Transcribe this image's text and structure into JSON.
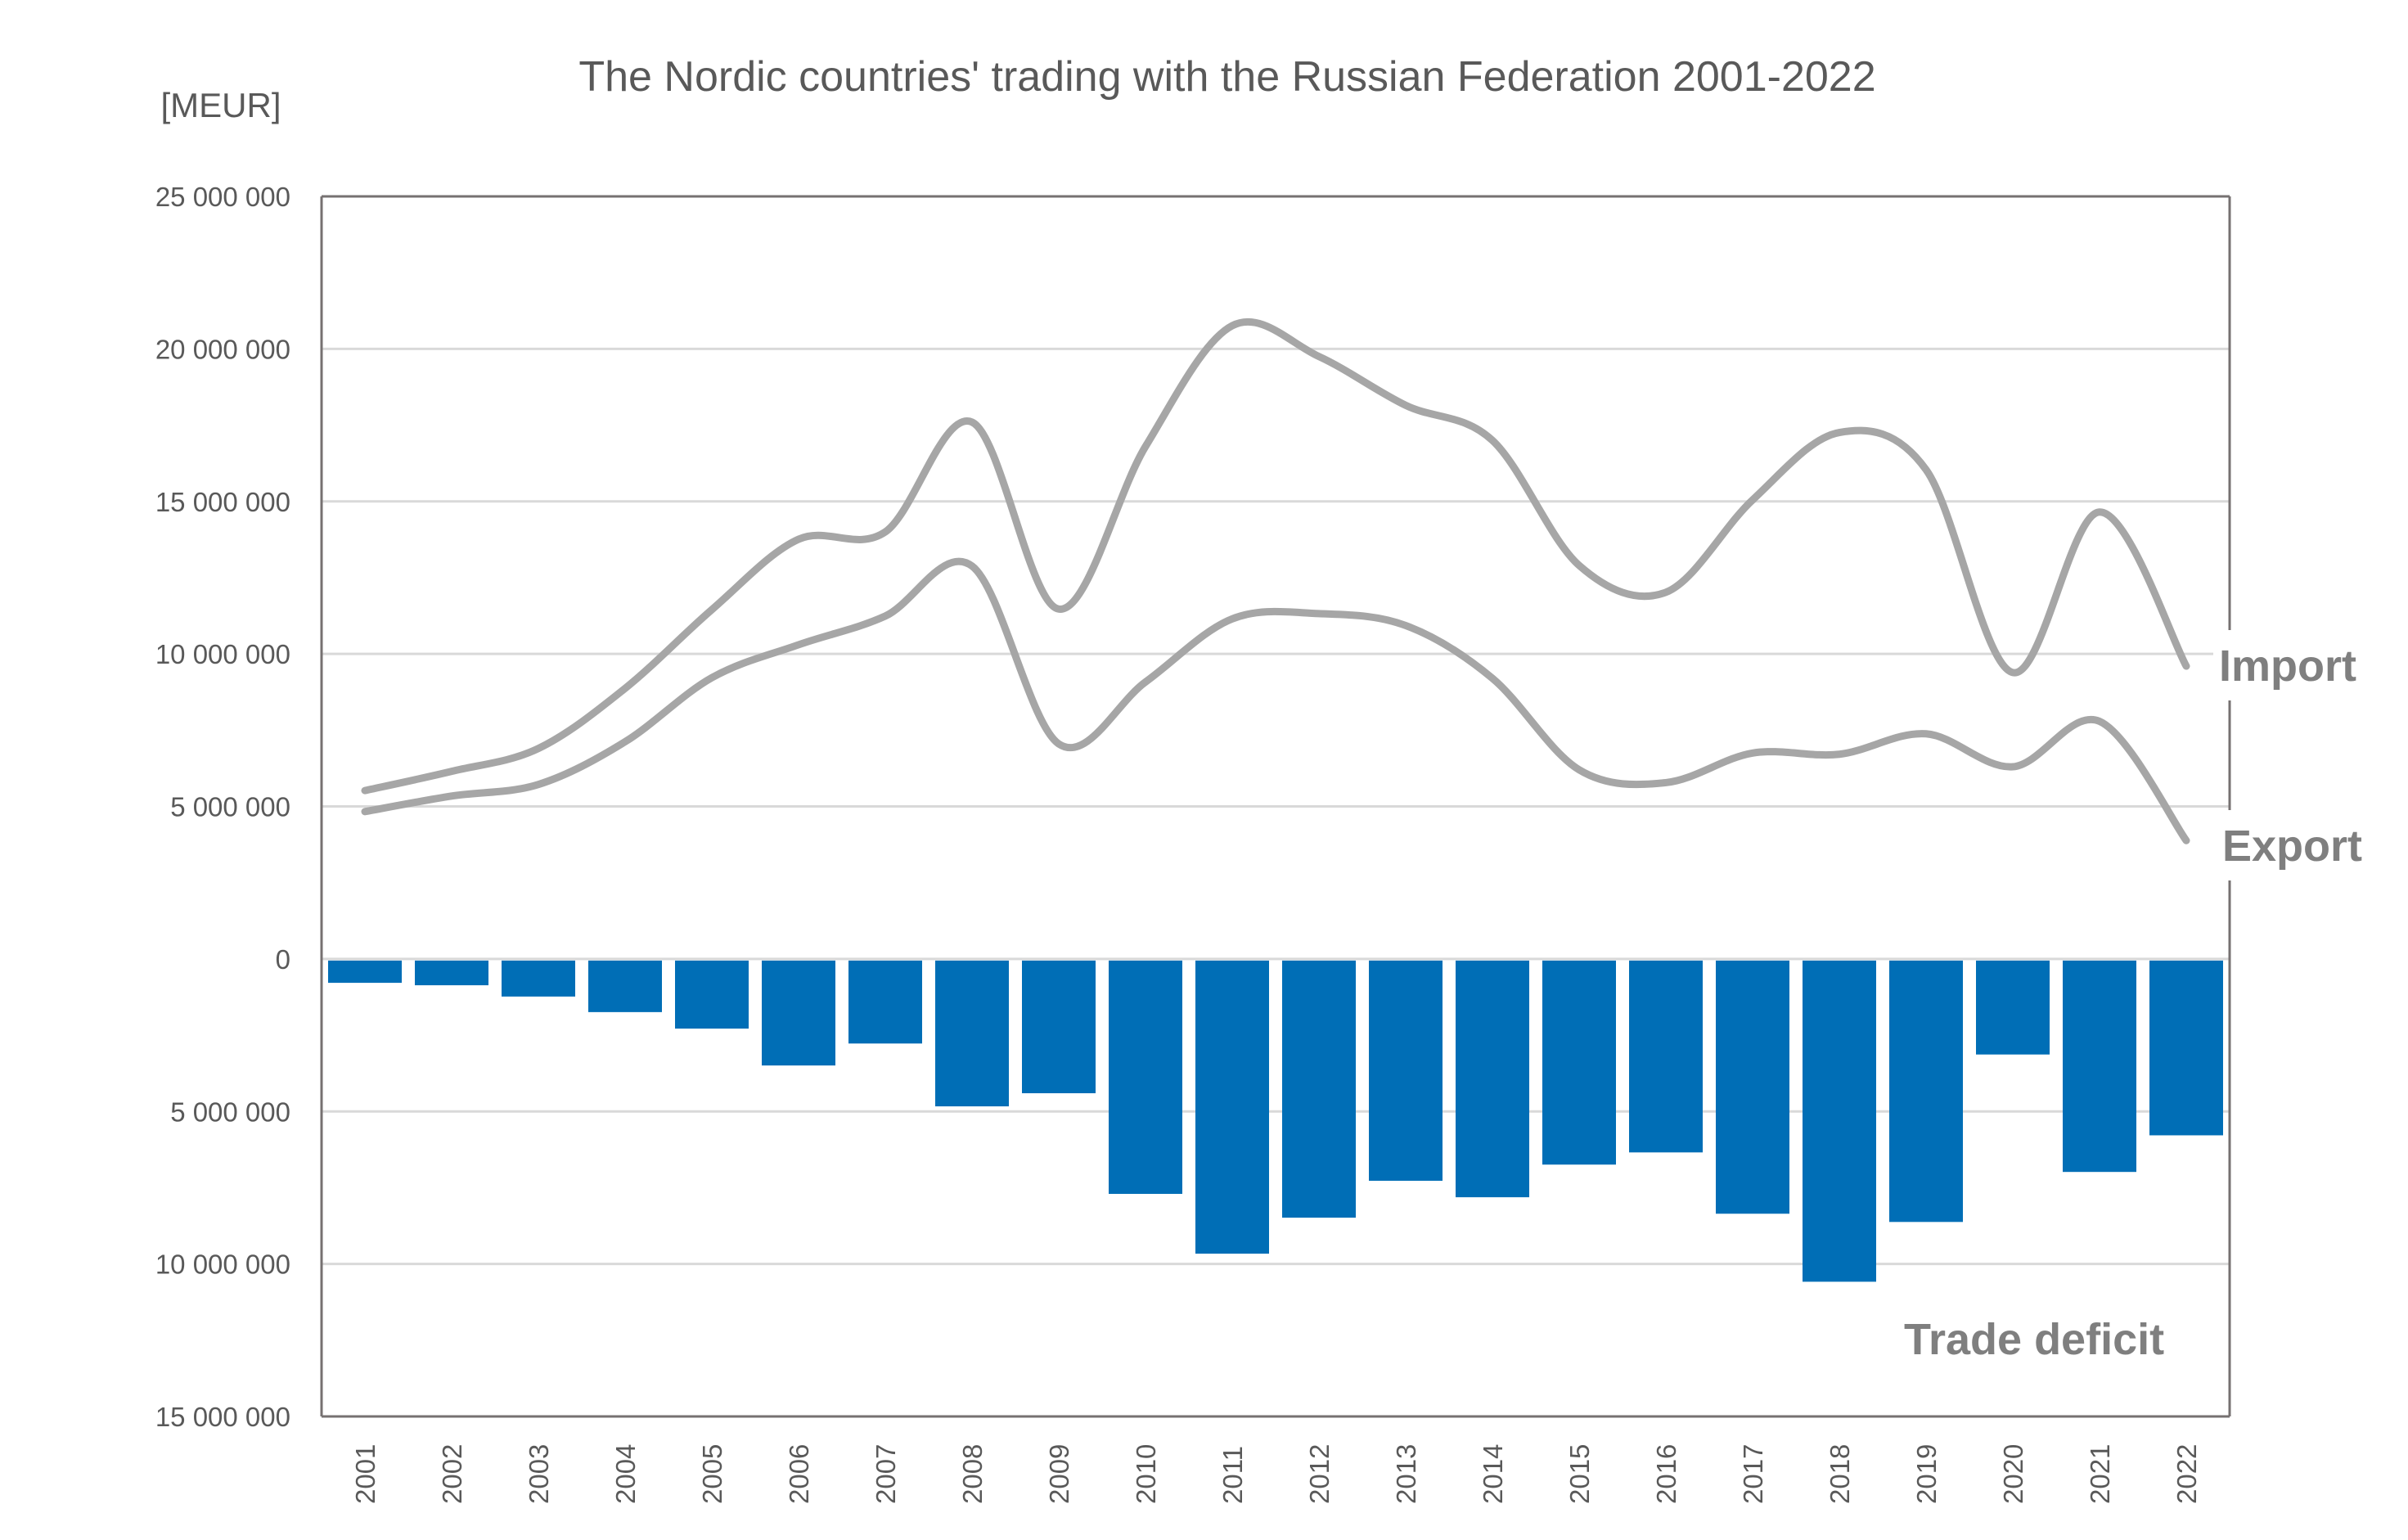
{
  "chart_data": {
    "type": "bar+line",
    "title": "The Nordic countries' trading with the Russian Federation 2001-2022",
    "ylabel": "[MEUR]",
    "xlabel": "",
    "ylim": [
      -15000000,
      25000000
    ],
    "yticks": [
      25000000,
      20000000,
      15000000,
      10000000,
      5000000,
      0,
      -5000000,
      -10000000,
      -15000000
    ],
    "ytick_labels": [
      "25 000 000",
      "20 000 000",
      "15 000 000",
      "10 000 000",
      "5 000 000",
      "0",
      "5 000 000",
      "10 000 000",
      "15 000 000"
    ],
    "grid": true,
    "categories": [
      "2001",
      "2002",
      "2003",
      "2004",
      "2005",
      "2006",
      "2007",
      "2008",
      "2009",
      "2010",
      "2011",
      "2012",
      "2013",
      "2014",
      "2015",
      "2016",
      "2017",
      "2018",
      "2019",
      "2020",
      "2021",
      "2022"
    ],
    "series": [
      {
        "name": "Import",
        "type": "line",
        "smooth": true,
        "color": "#a6a6a6",
        "values": [
          5520000,
          6150000,
          6900000,
          8870000,
          11450000,
          13760000,
          14000000,
          17600000,
          11470000,
          16800000,
          20760000,
          19750000,
          18150000,
          17000000,
          12900000,
          12020000,
          15050000,
          17260000,
          16040000,
          9390000,
          14650000,
          9600000
        ]
      },
      {
        "name": "Export",
        "type": "line",
        "smooth": true,
        "color": "#a6a6a6",
        "values": [
          4830000,
          5340000,
          5720000,
          7120000,
          9220000,
          10300000,
          11240000,
          12880000,
          7050000,
          9080000,
          11150000,
          11320000,
          10930000,
          9200000,
          6200000,
          5780000,
          6750000,
          6710000,
          7380000,
          6300000,
          7790000,
          3880000
        ]
      },
      {
        "name": "Trade deficit",
        "type": "bar",
        "color": "#006eb6",
        "values": [
          -730000,
          -810000,
          -1180000,
          -1690000,
          -2230000,
          -3440000,
          -2720000,
          -4780000,
          -4350000,
          -7650000,
          -9610000,
          -8430000,
          -7220000,
          -7760000,
          -6690000,
          -6290000,
          -8300000,
          -10530000,
          -8570000,
          -3080000,
          -6930000,
          -5730000
        ]
      }
    ],
    "annotations": [
      "Import",
      "Export",
      "Trade deficit"
    ],
    "legend": "none (direct labels on right)"
  }
}
